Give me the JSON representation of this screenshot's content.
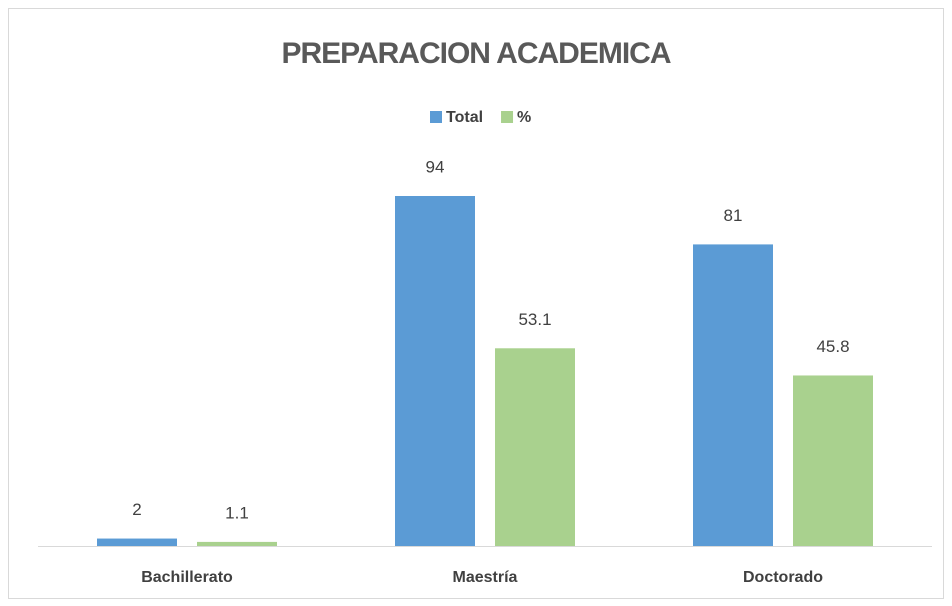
{
  "chart_data": {
    "type": "bar",
    "title": "PREPARACION ACADEMICA",
    "categories": [
      "Bachillerato",
      "Maestría",
      "Doctorado"
    ],
    "series": [
      {
        "name": "Total",
        "color": "#5b9bd5",
        "values": [
          2,
          94,
          81
        ]
      },
      {
        "name": "%",
        "color": "#a9d18e",
        "values": [
          1.1,
          53.1,
          45.8
        ]
      }
    ],
    "legend": "top"
  }
}
